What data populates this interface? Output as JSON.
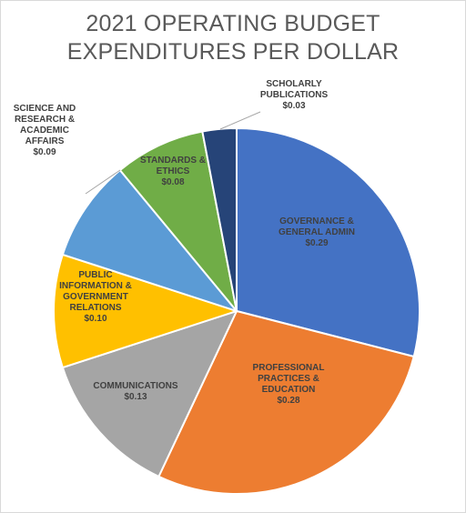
{
  "chart_data": {
    "type": "pie",
    "title_lines": [
      "2021 OPERATING BUDGET",
      "EXPENDITURES PER DOLLAR"
    ],
    "slices": [
      {
        "label_lines": [
          "GOVERNANCE &",
          "GENERAL ADMIN"
        ],
        "value_label": "$0.29",
        "value": 0.29,
        "color": "#4472c4"
      },
      {
        "label_lines": [
          "PROFESSIONAL",
          "PRACTICES &",
          "EDUCATION"
        ],
        "value_label": "$0.28",
        "value": 0.28,
        "color": "#ed7d31"
      },
      {
        "label_lines": [
          "COMMUNICATIONS"
        ],
        "value_label": "$0.13",
        "value": 0.13,
        "color": "#a5a5a5"
      },
      {
        "label_lines": [
          "PUBLIC",
          "INFORMATION &",
          "GOVERNMENT",
          "RELATIONS"
        ],
        "value_label": "$0.10",
        "value": 0.1,
        "color": "#ffc000"
      },
      {
        "label_lines": [
          "SCIENCE AND",
          "RESEARCH &",
          "ACADEMIC",
          "AFFAIRS"
        ],
        "value_label": "$0.09",
        "value": 0.09,
        "color": "#5b9bd5"
      },
      {
        "label_lines": [
          "STANDARDS &",
          "ETHICS"
        ],
        "value_label": "$0.08",
        "value": 0.08,
        "color": "#70ad47"
      },
      {
        "label_lines": [
          "SCHOLARLY",
          "PUBLICATIONS"
        ],
        "value_label": "$0.03",
        "value": 0.03,
        "color": "#264478"
      }
    ]
  }
}
